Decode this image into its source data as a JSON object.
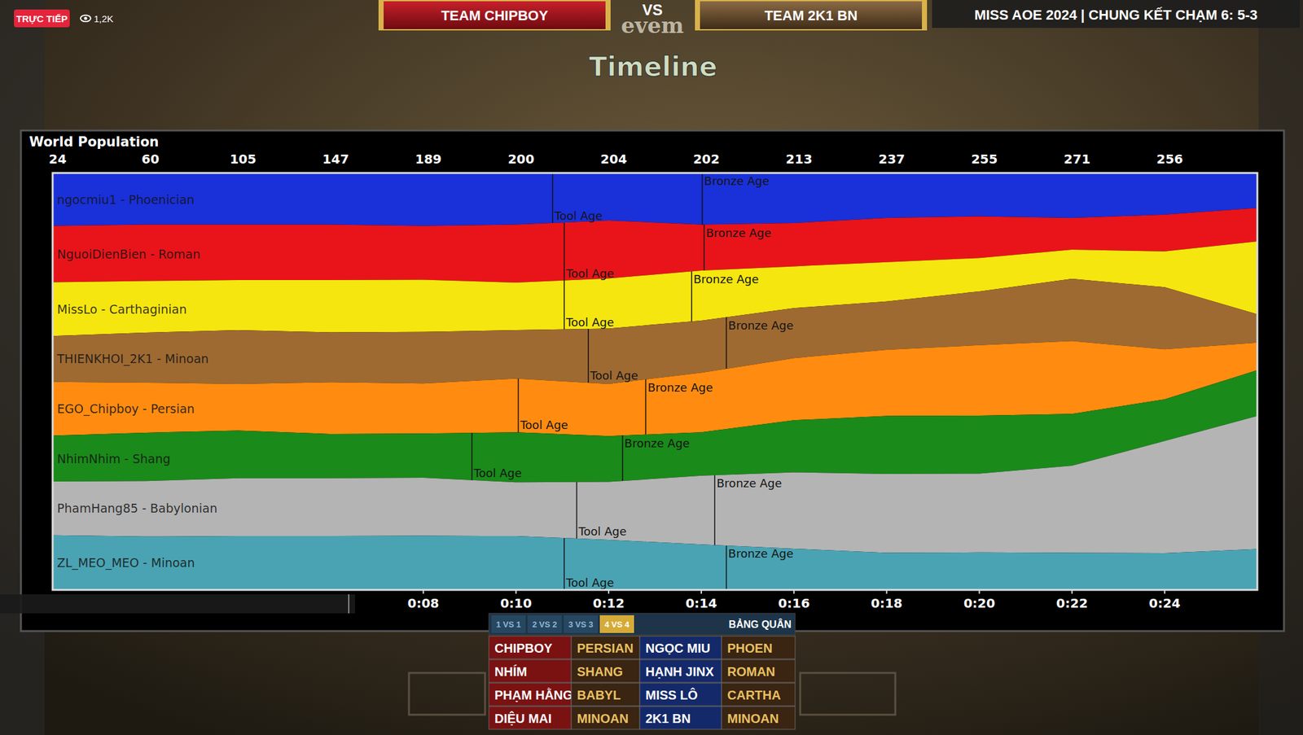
{
  "overlay": {
    "live_badge": "TRỰC TIẾP",
    "viewers": "1,2K",
    "team_left": "TEAM CHIPBOY",
    "vs": "VS",
    "background_text": "evem",
    "team_right": "TEAM 2K1 BN",
    "match_title": "MISS AOE 2024 | CHUNG KẾT CHẠM 6: 5-3"
  },
  "chart_data": {
    "type": "area",
    "stacked": true,
    "title": "Timeline",
    "subtitle": "World Population",
    "world_population": {
      "x": [
        0,
        2,
        4,
        6,
        8,
        10,
        12,
        14,
        16,
        18,
        20,
        22,
        24
      ],
      "values": [
        24,
        60,
        105,
        147,
        189,
        200,
        204,
        202,
        213,
        237,
        255,
        271,
        256
      ]
    },
    "x": [
      0,
      2,
      4,
      6,
      8,
      10,
      12,
      14,
      16,
      18,
      20,
      22,
      24,
      26
    ],
    "xlim": [
      0,
      26
    ],
    "xticks": [
      {
        "value": 8,
        "label": "0:08"
      },
      {
        "value": 10,
        "label": "0:10"
      },
      {
        "value": 12,
        "label": "0:12"
      },
      {
        "value": 14,
        "label": "0:14"
      },
      {
        "value": 16,
        "label": "0:16"
      },
      {
        "value": 18,
        "label": "0:18"
      },
      {
        "value": 20,
        "label": "0:20"
      },
      {
        "value": 22,
        "label": "0:22"
      },
      {
        "value": 24,
        "label": "0:24"
      }
    ],
    "ylim": [
      0,
      100
    ],
    "tick_labels": "x",
    "series": [
      {
        "name": "ngocmiu1 - Phoenician",
        "color": "#1a30d8",
        "values": [
          12.7,
          12.4,
          12.4,
          12.4,
          12.7,
          12.4,
          11.4,
          12.4,
          12.0,
          10.8,
          10.4,
          10.8,
          10.0,
          8.4
        ],
        "ages": [
          {
            "label": "Tool Age",
            "x": 10.79
          },
          {
            "label": "Bronze Age",
            "x": 14.02
          }
        ]
      },
      {
        "name": "NguoiDienBien - Roman",
        "color": "#e8141a",
        "values": [
          13.5,
          13.5,
          13.3,
          13.3,
          12.9,
          13.9,
          13.9,
          11.0,
          10.4,
          10.6,
          10.0,
          7.6,
          8.8,
          8.0
        ],
        "ages": [
          {
            "label": "Tool Age",
            "x": 11.04
          },
          {
            "label": "Bronze Age",
            "x": 14.06
          }
        ]
      },
      {
        "name": "MissLo - Carthaginian",
        "color": "#f5e60f",
        "values": [
          12.9,
          12.4,
          12.0,
          12.5,
          12.5,
          11.4,
          12.0,
          12.0,
          10.0,
          9.4,
          8.0,
          7.0,
          8.6,
          17.5
        ],
        "ages": [
          {
            "label": "Tool Age",
            "x": 11.04
          },
          {
            "label": "Bronze Age",
            "x": 13.79
          }
        ]
      },
      {
        "name": "THIENKHOI_2K1 - Minoan",
        "color": "#9e6a32",
        "values": [
          11.0,
          12.0,
          12.9,
          12.0,
          12.4,
          11.6,
          13.3,
          12.5,
          12.0,
          11.6,
          12.9,
          14.9,
          14.9,
          6.8
        ],
        "ages": [
          {
            "label": "Tool Age",
            "x": 11.56
          },
          {
            "label": "Bronze Age",
            "x": 14.54
          }
        ]
      },
      {
        "name": "EGO_Chipboy - Persian",
        "color": "#ff8c10",
        "values": [
          12.9,
          12.0,
          11.2,
          12.4,
          12.0,
          12.9,
          12.5,
          14.3,
          14.9,
          15.9,
          16.9,
          17.5,
          12.0,
          6.6
        ],
        "ages": [
          {
            "label": "Tool Age",
            "x": 10.05
          },
          {
            "label": "Bronze Age",
            "x": 12.8
          }
        ]
      },
      {
        "name": "NhimNhim - Shang",
        "color": "#1a8a1a",
        "values": [
          11.0,
          11.6,
          11.4,
          10.6,
          10.6,
          12.0,
          11.0,
          10.4,
          12.5,
          13.9,
          13.9,
          12.4,
          10.0,
          11.0
        ],
        "ages": [
          {
            "label": "Tool Age",
            "x": 9.05
          },
          {
            "label": "Bronze Age",
            "x": 12.3
          }
        ]
      },
      {
        "name": "PhamHang85 - Babylonian",
        "color": "#b4b4b4",
        "values": [
          12.9,
          13.3,
          13.9,
          13.9,
          13.9,
          12.9,
          13.9,
          16.5,
          18.3,
          18.9,
          18.9,
          20.9,
          26.9,
          31.9
        ],
        "ages": [
          {
            "label": "Tool Age",
            "x": 11.31
          },
          {
            "label": "Bronze Age",
            "x": 14.29
          }
        ]
      },
      {
        "name": "ZL_MEO_MEO - Minoan",
        "color": "#4aa3b3",
        "values": [
          13.1,
          12.8,
          12.9,
          12.9,
          13.0,
          12.9,
          12.0,
          10.9,
          9.9,
          8.9,
          9.0,
          8.9,
          8.8,
          9.8
        ],
        "ages": [
          {
            "label": "Tool Age",
            "x": 11.04
          },
          {
            "label": "Bronze Age",
            "x": 14.54
          }
        ]
      }
    ]
  },
  "roster": {
    "tabs": [
      "1 VS 1",
      "2 VS 2",
      "3 VS 3",
      "4 VS 4"
    ],
    "active_tab": "4 VS 4",
    "title": "BẢNG QUÂN",
    "rows": [
      [
        "CHIPBOY",
        "PERSIAN",
        "NGỌC MIU",
        "PHOEN"
      ],
      [
        "NHÍM",
        "SHANG",
        "HẠNH JINX",
        "ROMAN"
      ],
      [
        "PHẠM HẰNG",
        "BABYL",
        "MISS LÔ",
        "CARTHA"
      ],
      [
        "DIỆU MAI",
        "MINOAN",
        "2K1 BN",
        "MINOAN"
      ]
    ]
  }
}
